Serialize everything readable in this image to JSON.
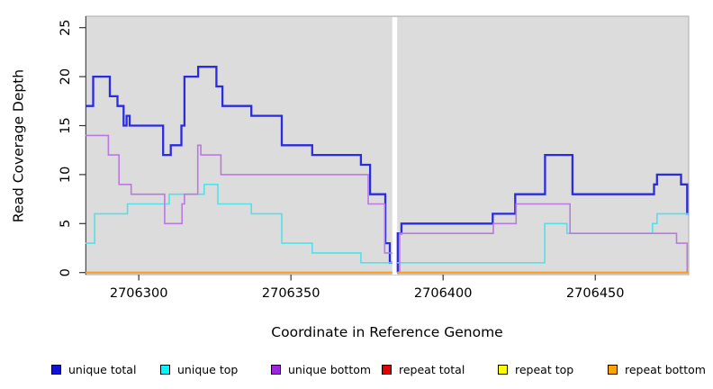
{
  "chart_data": {
    "type": "line",
    "subtype": "step",
    "title": "",
    "xlabel": "Coordinate in Reference Genome",
    "ylabel": "Read Coverage Depth",
    "xlim": [
      2706282.5,
      2706480.7
    ],
    "ylim": [
      0,
      25
    ],
    "x_ticks": [
      {
        "value": 2706300,
        "label": "2706300"
      },
      {
        "value": 2706350,
        "label": "2706350"
      },
      {
        "value": 2706400,
        "label": "2706400"
      },
      {
        "value": 2706450,
        "label": "2706450"
      }
    ],
    "y_ticks": [
      {
        "value": 0,
        "label": "0"
      },
      {
        "value": 5,
        "label": "5"
      },
      {
        "value": 10,
        "label": "10"
      },
      {
        "value": 15,
        "label": "15"
      },
      {
        "value": 20,
        "label": "20"
      },
      {
        "value": 25,
        "label": "25"
      }
    ],
    "panel_background": "#DCDCDC",
    "panel_border": "#ABABAB",
    "gap": {
      "x_start": 2706383.3,
      "x_end": 2706384.9,
      "color": "#FFFFFF"
    },
    "grid": "off",
    "legend_position": "bottom",
    "series": [
      {
        "name": "unique total",
        "color": "#2B2BE0",
        "line_width": 2.3,
        "steps": [
          [
            2706282.5,
            17
          ],
          [
            2706285,
            20
          ],
          [
            2706290.5,
            18
          ],
          [
            2706293,
            17
          ],
          [
            2706295,
            15
          ],
          [
            2706296,
            16
          ],
          [
            2706297,
            15
          ],
          [
            2706308,
            12
          ],
          [
            2706310.5,
            13
          ],
          [
            2706314,
            15
          ],
          [
            2706315,
            20
          ],
          [
            2706319.5,
            21
          ],
          [
            2706325.5,
            19
          ],
          [
            2706327.5,
            17
          ],
          [
            2706337,
            16
          ],
          [
            2706347,
            13
          ],
          [
            2706357,
            12
          ],
          [
            2706373,
            11
          ],
          [
            2706376,
            8
          ],
          [
            2706381,
            3
          ],
          [
            2706382.5,
            1
          ],
          [
            2706383.3,
            null
          ],
          [
            2706384.9,
            0
          ],
          [
            2706385.1,
            4
          ],
          [
            2706386.3,
            5
          ],
          [
            2706416.3,
            6
          ],
          [
            2706423.7,
            8
          ],
          [
            2706433.5,
            12
          ],
          [
            2706442.5,
            8
          ],
          [
            2706469.3,
            9
          ],
          [
            2706470.3,
            10
          ],
          [
            2706478.2,
            9
          ],
          [
            2706480.2,
            6
          ]
        ]
      },
      {
        "name": "unique top",
        "color": "#52E1E8",
        "line_width": 1.6,
        "steps": [
          [
            2706282.5,
            3
          ],
          [
            2706285.5,
            6
          ],
          [
            2706296.3,
            7
          ],
          [
            2706310,
            8
          ],
          [
            2706321.5,
            9
          ],
          [
            2706326,
            7
          ],
          [
            2706337,
            6
          ],
          [
            2706347,
            3
          ],
          [
            2706357,
            2
          ],
          [
            2706373,
            1
          ],
          [
            2706383.3,
            null
          ],
          [
            2706384.9,
            1
          ],
          [
            2706433.4,
            5
          ],
          [
            2706440.7,
            4
          ],
          [
            2706468.8,
            5
          ],
          [
            2706470.3,
            6
          ]
        ]
      },
      {
        "name": "unique bottom",
        "color": "#BB79DF",
        "line_width": 1.6,
        "steps": [
          [
            2706282.5,
            14
          ],
          [
            2706290,
            12
          ],
          [
            2706293.5,
            9
          ],
          [
            2706297.5,
            8
          ],
          [
            2706308.5,
            5
          ],
          [
            2706314.2,
            7
          ],
          [
            2706315,
            8
          ],
          [
            2706319.4,
            13
          ],
          [
            2706320.4,
            12
          ],
          [
            2706327,
            10
          ],
          [
            2706375.4,
            7
          ],
          [
            2706380.8,
            2
          ],
          [
            2706383.3,
            null
          ],
          [
            2706384.9,
            0
          ],
          [
            2706385.7,
            4
          ],
          [
            2706416.5,
            5
          ],
          [
            2706424,
            7
          ],
          [
            2706441.7,
            4
          ],
          [
            2706476.7,
            3
          ],
          [
            2706480.2,
            0
          ]
        ]
      },
      {
        "name": "repeat total",
        "color": "#DE0000",
        "line_width": 1.6,
        "steps": [
          [
            2706282.5,
            0
          ],
          [
            2706383.3,
            null
          ],
          [
            2706384.9,
            0
          ]
        ]
      },
      {
        "name": "repeat top",
        "color": "#FFFF00",
        "line_width": 1.6,
        "steps": [
          [
            2706282.5,
            0
          ],
          [
            2706383.3,
            null
          ],
          [
            2706384.9,
            0
          ]
        ]
      },
      {
        "name": "repeat bottom",
        "color": "#FF9C1E",
        "line_width": 2.0,
        "steps": [
          [
            2706282.5,
            0
          ],
          [
            2706383.3,
            null
          ],
          [
            2706384.9,
            0
          ]
        ]
      }
    ],
    "legend": [
      {
        "label": "unique total",
        "fill": "#1111D8"
      },
      {
        "label": "unique top",
        "fill": "#00F5FF"
      },
      {
        "label": "unique bottom",
        "fill": "#9B26DB"
      },
      {
        "label": "repeat total",
        "fill": "#E30000"
      },
      {
        "label": "repeat top",
        "fill": "#FFFF00"
      },
      {
        "label": "repeat bottom",
        "fill": "#FFA300"
      }
    ]
  }
}
